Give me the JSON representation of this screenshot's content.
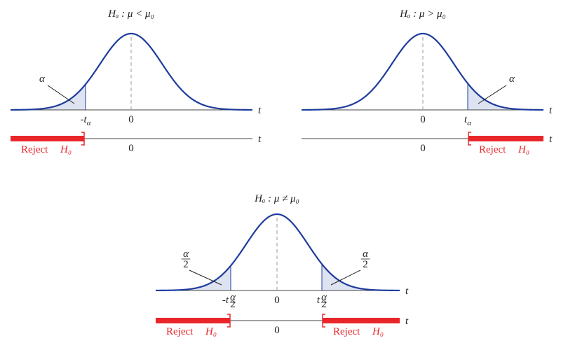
{
  "panels": [
    {
      "title": "Hₐ : μ < μ₀",
      "alpha_label": "α",
      "critical_label": {
        "t": "-t",
        "sub": "α"
      },
      "axis_center": "0",
      "axis_label": "t",
      "line_center": "0",
      "line_label": "t",
      "reject": {
        "word": "Reject",
        "hypothesis": "H₀"
      }
    },
    {
      "title": "Hₐ : μ > μ₀",
      "alpha_label": "α",
      "critical_label": {
        "t": "t",
        "sub": "α"
      },
      "axis_center": "0",
      "axis_label": "t",
      "line_center": "0",
      "line_label": "t",
      "reject": {
        "word": "Reject",
        "hypothesis": "H₀"
      }
    },
    {
      "title": "Hₐ : μ ≠ μ₀",
      "alpha_labels": [
        {
          "numerator": "α",
          "denominator": "2"
        },
        {
          "numerator": "α",
          "denominator": "2"
        }
      ],
      "critical_labels": [
        {
          "t": "-t",
          "numerator": "α",
          "denominator": "2"
        },
        {
          "t": "t",
          "numerator": "α",
          "denominator": "2"
        }
      ],
      "axis_center": "0",
      "axis_label": "t",
      "line_center": "0",
      "line_label": "t",
      "rejects": [
        {
          "word": "Reject",
          "hypothesis": "H₀"
        },
        {
          "word": "Reject",
          "hypothesis": "H₀"
        }
      ]
    }
  ]
}
